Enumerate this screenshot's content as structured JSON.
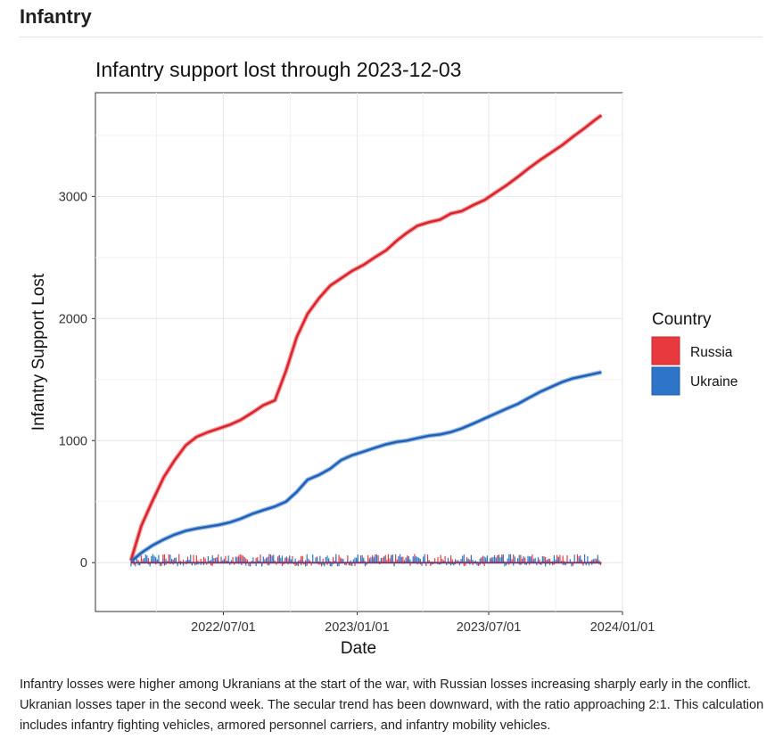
{
  "section_title": "Infantry",
  "caption": "Infantry losses were higher among Ukranians at the start of the war, with Russian losses increasing sharply early in the conflict. Ukranian losses taper in the second week. The secular trend has been downward, with the ratio approaching 2:1. This calculation includes infantry fighting vehicles, armored personnel carriers, and infantry mobility vehicles.",
  "chart_data": {
    "type": "line",
    "title": "Infantry support lost through 2023-12-03",
    "xlabel": "Date",
    "ylabel": "Infantry Support Lost",
    "xlim": [
      "2022-01-06",
      "2024-01-01"
    ],
    "ylim": [
      -400,
      3850
    ],
    "x_ticks": [
      "2022/07/01",
      "2023/01/01",
      "2023/07/01",
      "2024/01/01"
    ],
    "y_ticks": [
      0,
      1000,
      2000,
      3000
    ],
    "grid": true,
    "legend": {
      "title": "Country",
      "position": "right"
    },
    "colors": {
      "Russia": "#e8393f",
      "Ukraine": "#2e74c9"
    },
    "series": [
      {
        "name": "Russia",
        "color": "#e8393f",
        "x": [
          "2022-02-24",
          "2022-03-10",
          "2022-03-25",
          "2022-04-10",
          "2022-04-25",
          "2022-05-10",
          "2022-05-25",
          "2022-06-10",
          "2022-06-25",
          "2022-07-10",
          "2022-07-25",
          "2022-08-10",
          "2022-08-25",
          "2022-09-10",
          "2022-09-25",
          "2022-10-10",
          "2022-10-25",
          "2022-11-10",
          "2022-11-25",
          "2022-12-10",
          "2022-12-25",
          "2023-01-10",
          "2023-01-25",
          "2023-02-10",
          "2023-02-25",
          "2023-03-10",
          "2023-03-25",
          "2023-04-10",
          "2023-04-25",
          "2023-05-10",
          "2023-05-25",
          "2023-06-10",
          "2023-06-25",
          "2023-07-10",
          "2023-07-25",
          "2023-08-10",
          "2023-08-25",
          "2023-09-10",
          "2023-09-25",
          "2023-10-10",
          "2023-10-25",
          "2023-11-10",
          "2023-11-25",
          "2023-12-03"
        ],
        "y": [
          20,
          300,
          500,
          700,
          840,
          960,
          1030,
          1070,
          1100,
          1130,
          1170,
          1230,
          1290,
          1330,
          1570,
          1850,
          2040,
          2170,
          2270,
          2330,
          2390,
          2440,
          2500,
          2560,
          2640,
          2700,
          2760,
          2790,
          2810,
          2860,
          2880,
          2930,
          2970,
          3030,
          3090,
          3160,
          3230,
          3300,
          3360,
          3420,
          3490,
          3560,
          3630,
          3665
        ]
      },
      {
        "name": "Ukraine",
        "color": "#2e74c9",
        "x": [
          "2022-02-24",
          "2022-03-10",
          "2022-03-25",
          "2022-04-10",
          "2022-04-25",
          "2022-05-10",
          "2022-05-25",
          "2022-06-10",
          "2022-06-25",
          "2022-07-10",
          "2022-07-25",
          "2022-08-10",
          "2022-08-25",
          "2022-09-10",
          "2022-09-25",
          "2022-10-10",
          "2022-10-25",
          "2022-11-10",
          "2022-11-25",
          "2022-12-10",
          "2022-12-25",
          "2023-01-10",
          "2023-01-25",
          "2023-02-10",
          "2023-02-25",
          "2023-03-10",
          "2023-03-25",
          "2023-04-10",
          "2023-04-25",
          "2023-05-10",
          "2023-05-25",
          "2023-06-10",
          "2023-06-25",
          "2023-07-10",
          "2023-07-25",
          "2023-08-10",
          "2023-08-25",
          "2023-09-10",
          "2023-09-25",
          "2023-10-10",
          "2023-10-25",
          "2023-11-10",
          "2023-11-25",
          "2023-12-03"
        ],
        "y": [
          10,
          80,
          140,
          190,
          230,
          260,
          280,
          295,
          310,
          330,
          360,
          400,
          430,
          460,
          500,
          580,
          680,
          720,
          770,
          840,
          880,
          910,
          940,
          970,
          990,
          1000,
          1020,
          1040,
          1050,
          1070,
          1100,
          1140,
          1180,
          1220,
          1260,
          1300,
          1350,
          1400,
          1440,
          1480,
          1510,
          1530,
          1550,
          1560
        ]
      }
    ]
  }
}
